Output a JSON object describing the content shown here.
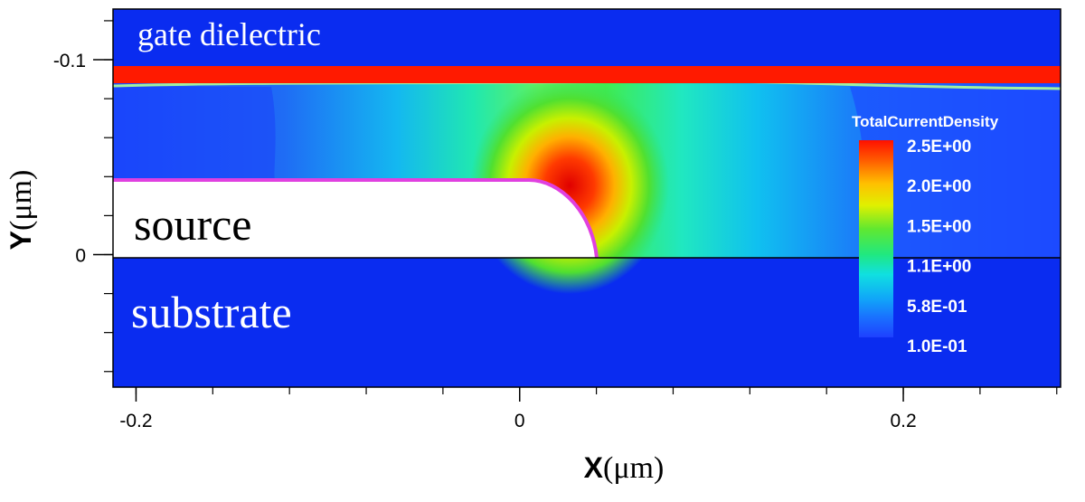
{
  "chart_data": {
    "type": "heatmap",
    "title": "",
    "xlabel": {
      "bold": "X",
      "unit": "(μm)"
    },
    "ylabel": {
      "bold": "Y",
      "unit": "(μm)"
    },
    "x_ticks": [
      {
        "value": -0.2,
        "label": "-0.2"
      },
      {
        "value": 0,
        "label": "0"
      },
      {
        "value": 0.2,
        "label": "0.2"
      }
    ],
    "y_ticks": [
      {
        "value": -0.1,
        "label": "-0.1"
      },
      {
        "value": 0,
        "label": "0"
      }
    ],
    "xlim": [
      -0.212,
      0.282
    ],
    "ylim": [
      -0.126,
      0.068
    ],
    "y_axis_inverted": true,
    "regions": [
      {
        "name": "gate dielectric",
        "label": "gate dielectric"
      },
      {
        "name": "source",
        "label": "source"
      },
      {
        "name": "substrate",
        "label": "substrate"
      }
    ],
    "colorbar": {
      "title": "TotalCurrentDensity",
      "tick_labels": [
        "2.5E+00",
        "2.0E+00",
        "1.5E+00",
        "1.1E+00",
        "5.8E-01",
        "1.0E-01"
      ],
      "min": 0.1,
      "max": 2.5
    },
    "colors": {
      "background_region": "#0a2cf0",
      "high": "#ff1e00",
      "low": "#1e40ff",
      "source_outline": "#e040e0"
    }
  }
}
